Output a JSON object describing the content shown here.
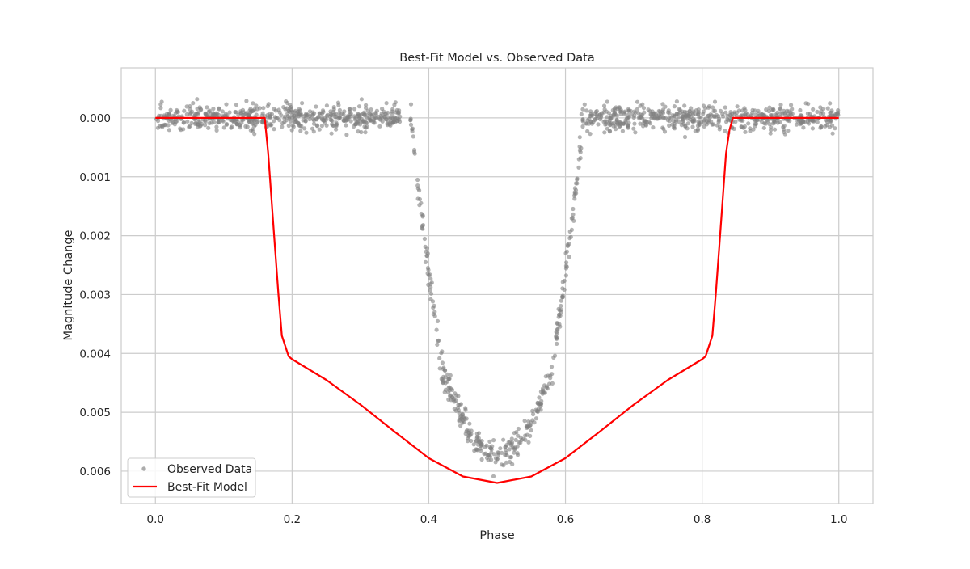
{
  "chart_data": {
    "type": "scatter",
    "title": "Best-Fit Model vs. Observed Data",
    "xlabel": "Phase",
    "ylabel": "Magnitude Change",
    "xlim": [
      -0.05,
      1.05
    ],
    "ylim": [
      0.00655,
      -0.00085
    ],
    "y_inverted": true,
    "grid": true,
    "legend_position": "lower-left",
    "x_ticks": [
      0.0,
      0.2,
      0.4,
      0.6,
      0.8,
      1.0
    ],
    "x_tick_labels": [
      "0.0",
      "0.2",
      "0.4",
      "0.6",
      "0.8",
      "1.0"
    ],
    "y_ticks": [
      0.0,
      0.001,
      0.002,
      0.003,
      0.004,
      0.005,
      0.006
    ],
    "y_tick_labels": [
      "0.000",
      "0.001",
      "0.002",
      "0.003",
      "0.004",
      "0.005",
      "0.006"
    ],
    "series": [
      {
        "name": "Observed Data",
        "kind": "scatter",
        "color": "#808080",
        "n_points": 1500,
        "noise_sigma": 0.00022,
        "profile": {
          "baseline": 0.0,
          "ingress_start": 0.375,
          "ingress_end": 0.42,
          "egress_start": 0.58,
          "egress_end": 0.625,
          "depth_at_contact": 0.0043,
          "max_depth": 0.0057
        }
      },
      {
        "name": "Best-Fit Model",
        "kind": "line",
        "color": "#ff0000",
        "points": [
          [
            0.0,
            0.0
          ],
          [
            0.155,
            0.0
          ],
          [
            0.16,
            0.0
          ],
          [
            0.165,
            0.0006
          ],
          [
            0.17,
            0.0014
          ],
          [
            0.175,
            0.0022
          ],
          [
            0.18,
            0.003
          ],
          [
            0.185,
            0.0037
          ],
          [
            0.195,
            0.00405
          ],
          [
            0.2,
            0.0041
          ],
          [
            0.25,
            0.00445
          ],
          [
            0.3,
            0.00487
          ],
          [
            0.35,
            0.00533
          ],
          [
            0.4,
            0.00578
          ],
          [
            0.45,
            0.00609
          ],
          [
            0.5,
            0.0062
          ],
          [
            0.55,
            0.00609
          ],
          [
            0.6,
            0.00578
          ],
          [
            0.65,
            0.00533
          ],
          [
            0.7,
            0.00487
          ],
          [
            0.75,
            0.00445
          ],
          [
            0.8,
            0.0041
          ],
          [
            0.805,
            0.00405
          ],
          [
            0.815,
            0.0037
          ],
          [
            0.82,
            0.003
          ],
          [
            0.825,
            0.0022
          ],
          [
            0.83,
            0.0014
          ],
          [
            0.835,
            0.0006
          ],
          [
            0.84,
            0.0002
          ],
          [
            0.845,
            0.0
          ],
          [
            1.0,
            0.0
          ]
        ]
      }
    ]
  }
}
